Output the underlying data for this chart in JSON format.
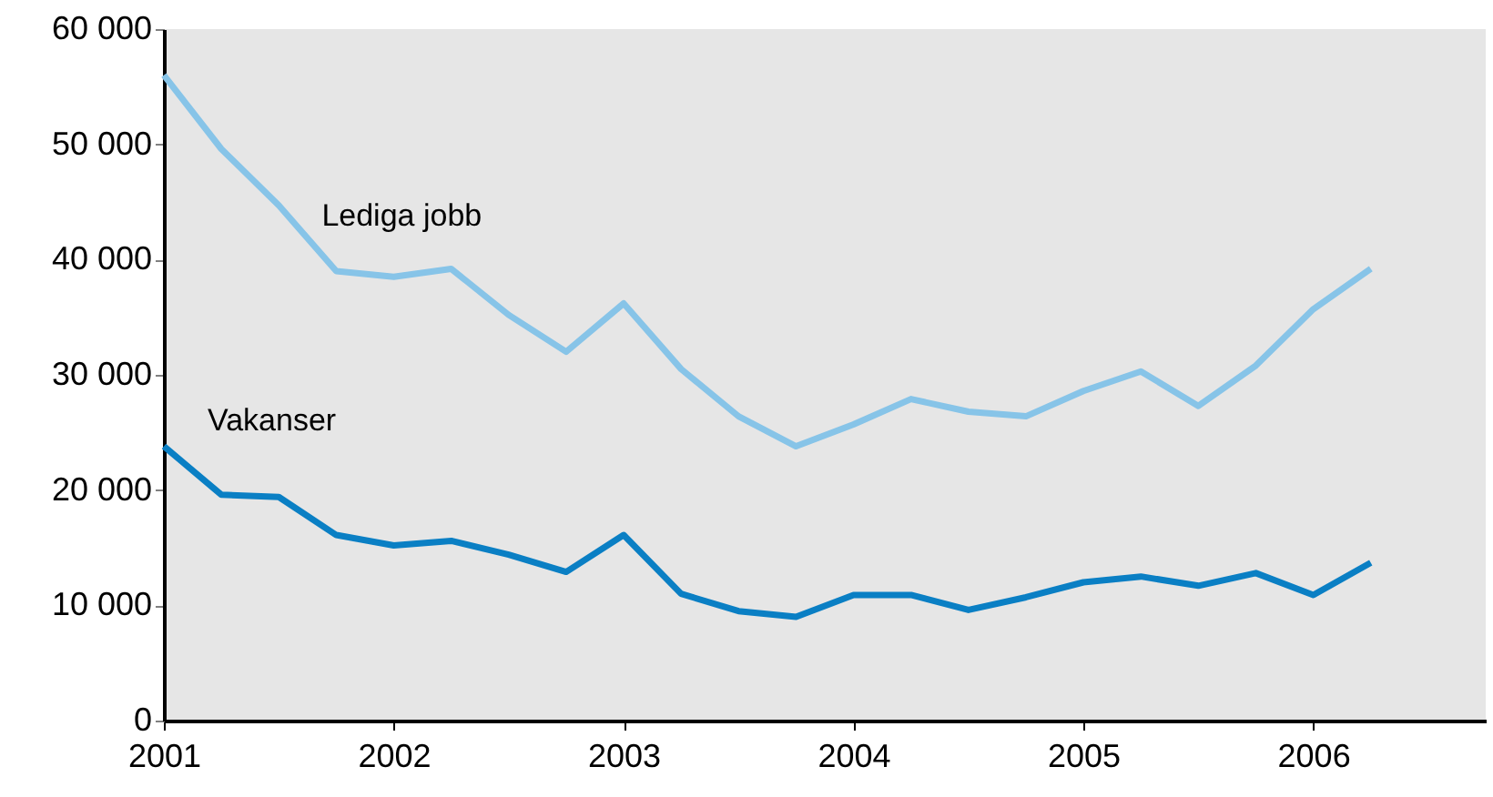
{
  "chart_data": {
    "type": "line",
    "x": [
      2001,
      2001.25,
      2001.5,
      2001.75,
      2002,
      2002.25,
      2002.5,
      2002.75,
      2003,
      2003.25,
      2003.5,
      2003.75,
      2004,
      2004.25,
      2004.5,
      2004.75,
      2005,
      2005.25,
      2005.5,
      2005.75,
      2006,
      2006.25
    ],
    "series": [
      {
        "name": "Lediga jobb",
        "color": "#87c4e8",
        "values": [
          56000,
          49600,
          44700,
          39000,
          38500,
          39200,
          35200,
          32000,
          36200,
          30500,
          26400,
          23800,
          25700,
          27900,
          26800,
          26400,
          28600,
          30300,
          27300,
          30800,
          35700,
          39200
        ]
      },
      {
        "name": "Vakanser",
        "color": "#0a7fc4",
        "values": [
          23800,
          19600,
          19400,
          16100,
          15200,
          15600,
          14400,
          12900,
          16100,
          11000,
          9500,
          9000,
          10900,
          10900,
          9600,
          10700,
          12000,
          12500,
          11700,
          12800,
          10900,
          13700
        ]
      }
    ],
    "xlim": [
      2001,
      2006.75
    ],
    "xticks": [
      2001,
      2002,
      2003,
      2004,
      2005,
      2006
    ],
    "ylim": [
      0,
      60000
    ],
    "yticks": [
      0,
      {
        "value": 10000,
        "label": "10 000"
      },
      {
        "value": 20000,
        "label": "20 000"
      },
      {
        "value": 30000,
        "label": "30 000"
      },
      {
        "value": 40000,
        "label": "40 000"
      },
      {
        "value": 50000,
        "label": "50 000"
      },
      {
        "value": 60000,
        "label": "60 000"
      }
    ],
    "grid": false,
    "marker": "none",
    "line_style": "solid"
  }
}
